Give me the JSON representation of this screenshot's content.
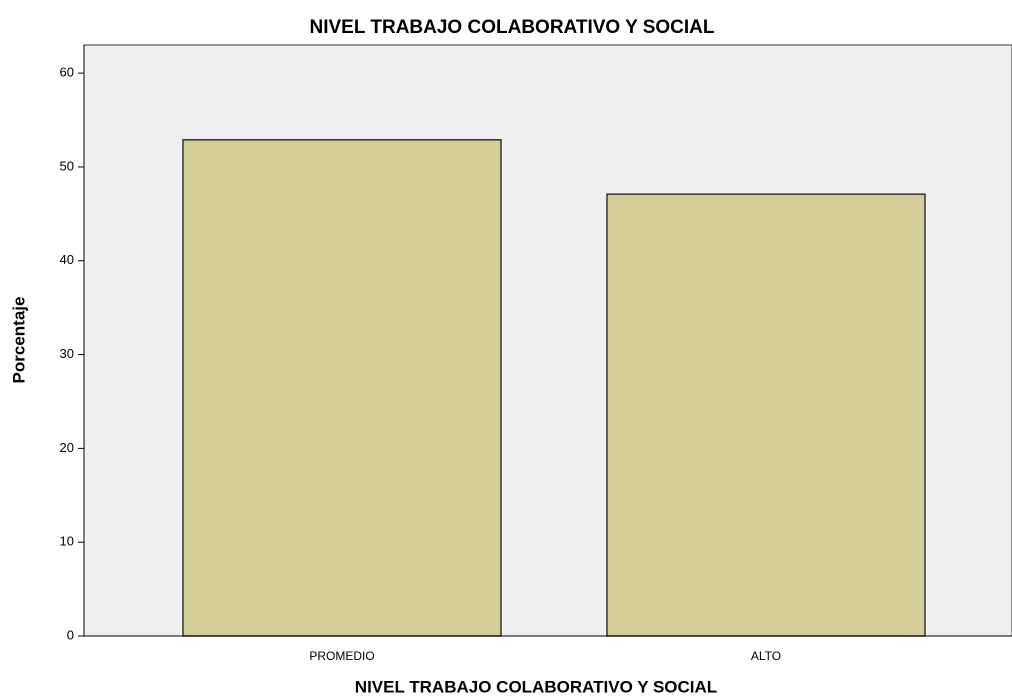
{
  "chart_data": {
    "type": "bar",
    "title": "NIVEL TRABAJO COLABORATIVO Y SOCIAL",
    "x_label": "NIVEL TRABAJO COLABORATIVO Y SOCIAL",
    "y_label": "Porcentaje",
    "categories": [
      "PROMEDIO",
      "ALTO"
    ],
    "values": [
      52.9,
      47.1
    ],
    "color": "#d3ce97",
    "ylim": [
      0,
      63
    ],
    "yticks": [
      0,
      10,
      20,
      30,
      40,
      50,
      60
    ],
    "grid": false
  }
}
